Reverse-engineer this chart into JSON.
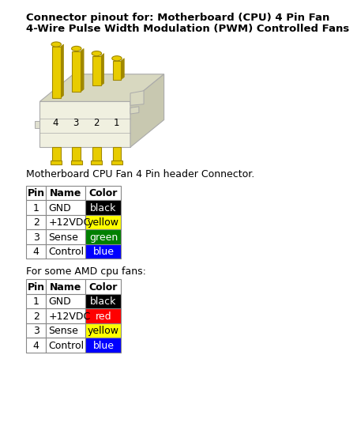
{
  "title_line1": "Connector pinout for: Motherboard (CPU) 4 Pin Fan",
  "title_line2": "4-Wire Pulse Width Modulation (PWM) Controlled Fans",
  "connector_caption": "Motherboard CPU Fan 4 Pin header Connector.",
  "amd_label": "For some AMD cpu fans:",
  "table1_header": [
    "Pin",
    "Name",
    "Color"
  ],
  "table1_rows": [
    [
      "1",
      "GND",
      "black",
      "#000000",
      "white"
    ],
    [
      "2",
      "+12VDC",
      "yellow",
      "#FFFF00",
      "black"
    ],
    [
      "3",
      "Sense",
      "green",
      "#008000",
      "white"
    ],
    [
      "4",
      "Control",
      "blue",
      "#0000FF",
      "white"
    ]
  ],
  "table2_header": [
    "Pin",
    "Name",
    "Color"
  ],
  "table2_rows": [
    [
      "1",
      "GND",
      "black",
      "#000000",
      "white"
    ],
    [
      "2",
      "+12VDC",
      "red",
      "#FF0000",
      "white"
    ],
    [
      "3",
      "Sense",
      "yellow",
      "#FFFF00",
      "black"
    ],
    [
      "4",
      "Control",
      "blue",
      "#0000FF",
      "white"
    ]
  ],
  "bg_color": "#ffffff",
  "border_color": "#888888",
  "title_fontsize": 9.5,
  "table_fontsize": 9,
  "caption_fontsize": 9
}
